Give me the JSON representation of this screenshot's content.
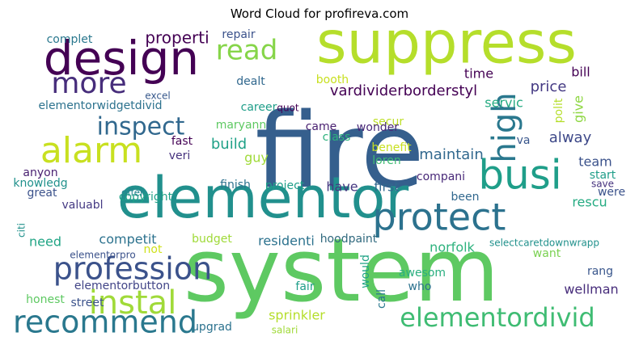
{
  "title": "Word Cloud for profireva.com",
  "chart_data": {
    "type": "wordcloud",
    "title": "Word Cloud for profireva.com",
    "background": "#ffffff",
    "words": [
      {
        "text": "fire",
        "color": "#355f8d"
      },
      {
        "text": "system",
        "color": "#5ec962"
      },
      {
        "text": "elementor",
        "color": "#21908d"
      },
      {
        "text": "suppress",
        "color": "#b5de2b"
      },
      {
        "text": "design",
        "color": "#440154"
      },
      {
        "text": "protect",
        "color": "#2c728e"
      },
      {
        "text": "busi",
        "color": "#1f9e89"
      },
      {
        "text": "alarm",
        "color": "#c8e020"
      },
      {
        "text": "profession",
        "color": "#3b528b"
      },
      {
        "text": "recommend",
        "color": "#2a788e"
      },
      {
        "text": "instal",
        "color": "#a0da39"
      },
      {
        "text": "high",
        "color": "#2a788e"
      },
      {
        "text": "more",
        "color": "#472d7b"
      },
      {
        "text": "elementordivid",
        "color": "#3fbc73"
      },
      {
        "text": "read",
        "color": "#86d549"
      },
      {
        "text": "inspect",
        "color": "#31688e"
      },
      {
        "text": "properti",
        "color": "#440154"
      },
      {
        "text": "vardividerborderstyl",
        "color": "#440154"
      },
      {
        "text": "price",
        "color": "#443983"
      },
      {
        "text": "alway",
        "color": "#3e4989"
      },
      {
        "text": "maintain",
        "color": "#31688e"
      },
      {
        "text": "elementorwidgetdivid",
        "color": "#2c728e"
      },
      {
        "text": "build",
        "color": "#1fa187"
      },
      {
        "text": "protect",
        "color": "#2c728e"
      },
      {
        "text": "valuabl",
        "color": "#443983"
      },
      {
        "text": "residenti",
        "color": "#2c728e"
      },
      {
        "text": "hoodpaint",
        "color": "#30697e"
      },
      {
        "text": "norfolk",
        "color": "#2db27d"
      },
      {
        "text": "selectcaretdownwrapp",
        "color": "#21918c"
      },
      {
        "text": "wellman",
        "color": "#472d7b"
      },
      {
        "text": "sprinkler",
        "color": "#b5de2b"
      },
      {
        "text": "elementorbutton",
        "color": "#414487"
      },
      {
        "text": "competit",
        "color": "#2c728e"
      },
      {
        "text": "need",
        "color": "#21a585"
      },
      {
        "text": "copyright",
        "color": "#1fa187"
      },
      {
        "text": "finish",
        "color": "#2c728e"
      },
      {
        "text": "project",
        "color": "#1f9e89"
      },
      {
        "text": "budget",
        "color": "#a0da39"
      },
      {
        "text": "maryann",
        "color": "#5ec962"
      },
      {
        "text": "career",
        "color": "#1f9e89"
      },
      {
        "text": "time",
        "color": "#440154"
      },
      {
        "text": "servic",
        "color": "#25ab82"
      },
      {
        "text": "team",
        "color": "#3b528b"
      },
      {
        "text": "start",
        "color": "#1f9e89"
      },
      {
        "text": "rescu",
        "color": "#25ab82"
      },
      {
        "text": "want",
        "color": "#7ad151"
      },
      {
        "text": "rang",
        "color": "#39568c"
      },
      {
        "text": "call",
        "color": "#2a788e"
      },
      {
        "text": "would",
        "color": "#20a386"
      },
      {
        "text": "have",
        "color": "#453781"
      },
      {
        "text": "first",
        "color": "#31688e"
      },
      {
        "text": "compani",
        "color": "#482878"
      },
      {
        "text": "loren",
        "color": "#3fbc73"
      },
      {
        "text": "benefit",
        "color": "#c8e020"
      },
      {
        "text": "secur",
        "color": "#bddf26"
      },
      {
        "text": "class",
        "color": "#2db27d"
      },
      {
        "text": "wonder",
        "color": "#482878"
      },
      {
        "text": "came",
        "color": "#481f70"
      },
      {
        "text": "guy",
        "color": "#a0da39"
      },
      {
        "text": "veri",
        "color": "#46327e"
      },
      {
        "text": "fast",
        "color": "#440154"
      },
      {
        "text": "knowledg",
        "color": "#21918c"
      },
      {
        "text": "anyon",
        "color": "#481f70"
      },
      {
        "text": "great",
        "color": "#3b528b"
      },
      {
        "text": "offer",
        "color": "#25848e"
      },
      {
        "text": "complet",
        "color": "#2a788e"
      },
      {
        "text": "repair",
        "color": "#3b528b"
      },
      {
        "text": "dealt",
        "color": "#31688e"
      },
      {
        "text": "booth",
        "color": "#c8e020"
      },
      {
        "text": "bill",
        "color": "#440154"
      },
      {
        "text": "give",
        "color": "#8fd744"
      },
      {
        "text": "polit",
        "color": "#b5de2b"
      },
      {
        "text": "fair",
        "color": "#1f9e89"
      },
      {
        "text": "who",
        "color": "#2c728e"
      },
      {
        "text": "street",
        "color": "#3b528b"
      },
      {
        "text": "honest",
        "color": "#5ec962"
      },
      {
        "text": "upgrad",
        "color": "#2c728e"
      },
      {
        "text": "not",
        "color": "#cfe11c"
      },
      {
        "text": "citi",
        "color": "#21918c"
      },
      {
        "text": "were",
        "color": "#3b528b"
      },
      {
        "text": "been",
        "color": "#31688e"
      },
      {
        "text": "quot",
        "color": "#440154"
      },
      {
        "text": "excel",
        "color": "#38598c"
      },
      {
        "text": "save",
        "color": "#46327e"
      },
      {
        "text": "elementorpro",
        "color": "#3b528b"
      },
      {
        "text": "awesom",
        "color": "#29af7f"
      },
      {
        "text": "salari",
        "color": "#a0da39"
      },
      {
        "text": "va",
        "color": "#39568c"
      }
    ]
  }
}
